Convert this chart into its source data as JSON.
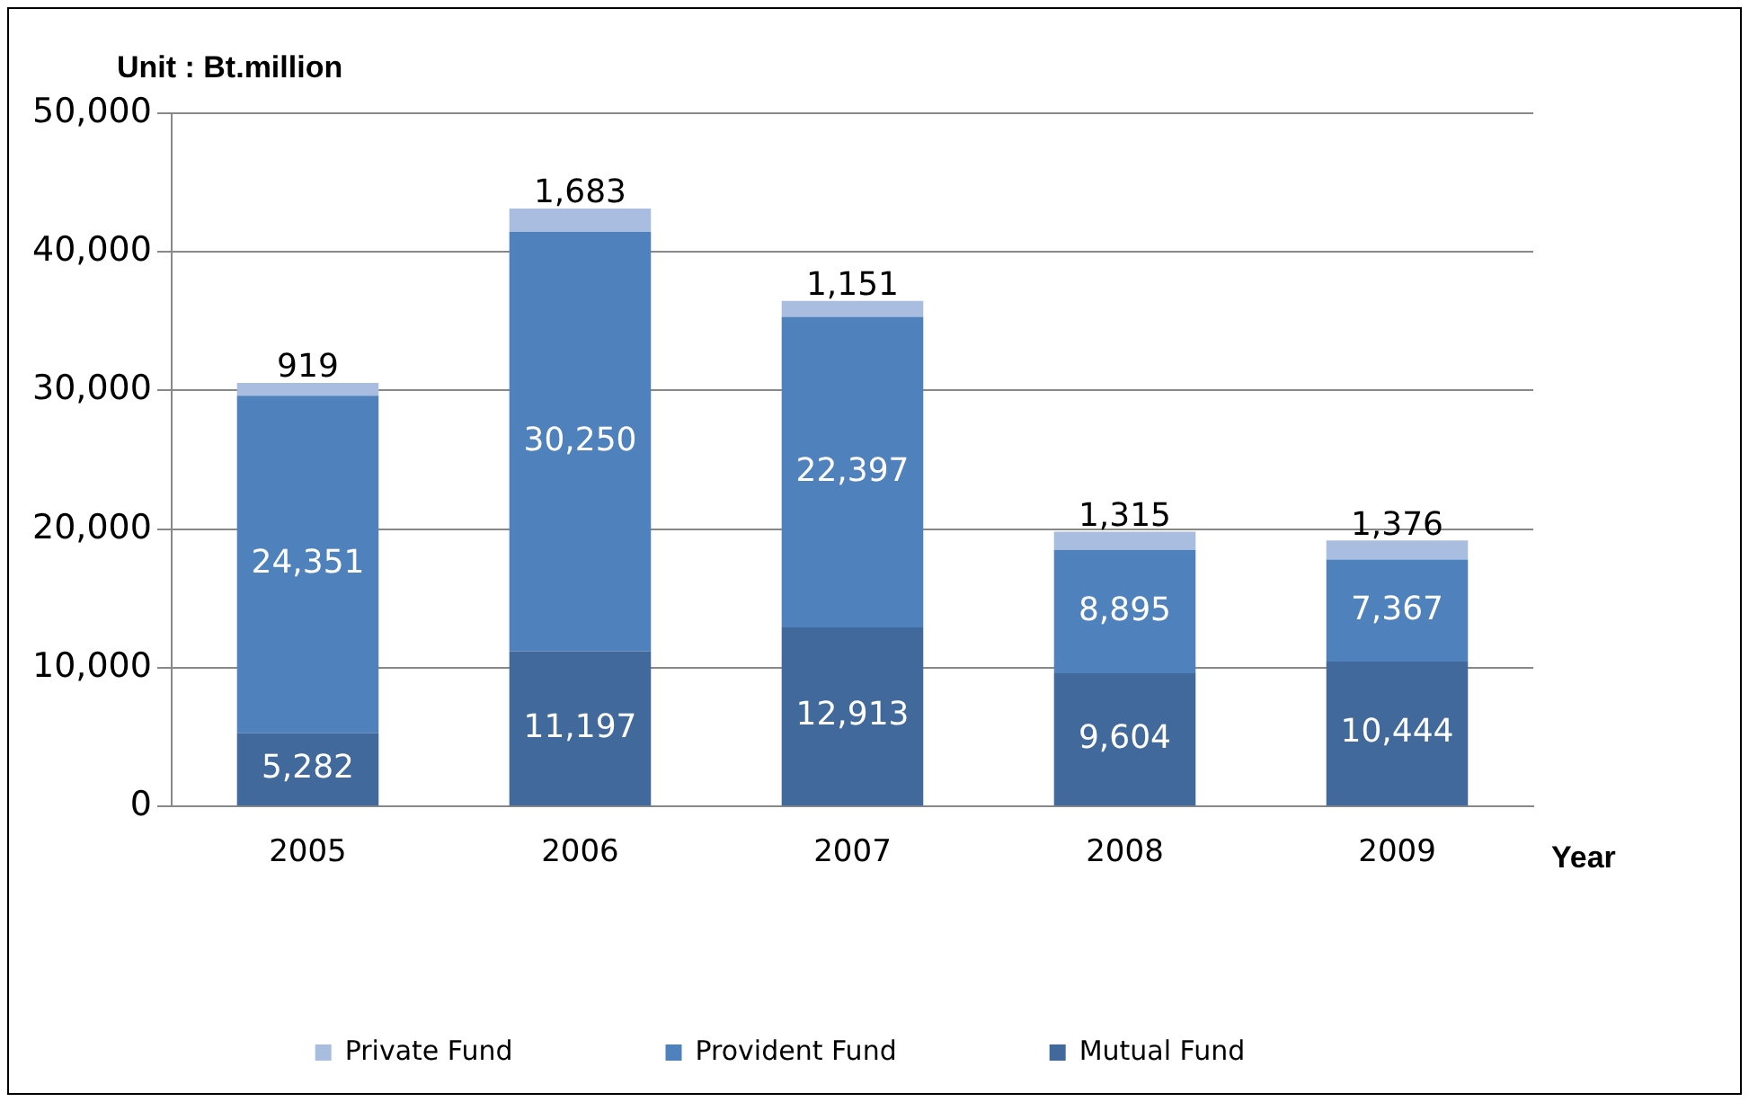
{
  "chart_data": {
    "type": "bar",
    "stacked": true,
    "ylabel": "Unit : Bt.million",
    "xlabel": "Year",
    "categories": [
      "2005",
      "2006",
      "2007",
      "2008",
      "2009"
    ],
    "series": [
      {
        "name": "Mutual Fund",
        "color": "#41699b",
        "values": [
          5282,
          11197,
          12913,
          9604,
          10444
        ],
        "value_labels": [
          "5,282",
          "11,197",
          "12,913",
          "9,604",
          "10,444"
        ]
      },
      {
        "name": "Provident Fund",
        "color": "#4f81bd",
        "values": [
          24351,
          30250,
          22397,
          8895,
          7367
        ],
        "value_labels": [
          "24,351",
          "30,250",
          "22,397",
          "8,895",
          "7,367"
        ]
      },
      {
        "name": "Private Fund",
        "color": "#a9bde0",
        "values": [
          919,
          1683,
          1151,
          1315,
          1376
        ],
        "value_labels": [
          "919",
          "1,683",
          "1,151",
          "1,315",
          "1,376"
        ]
      }
    ],
    "ylim": [
      0,
      50000
    ],
    "yticks": [
      0,
      {
        "value": 10000,
        "label": "10,000"
      },
      {
        "value": 20000,
        "label": "20,000"
      },
      {
        "value": 30000,
        "label": "30,000"
      },
      {
        "value": 40000,
        "label": "40,000"
      },
      {
        "value": 50000,
        "label": "50,000"
      }
    ],
    "grid": "y",
    "legend": "bottom"
  }
}
